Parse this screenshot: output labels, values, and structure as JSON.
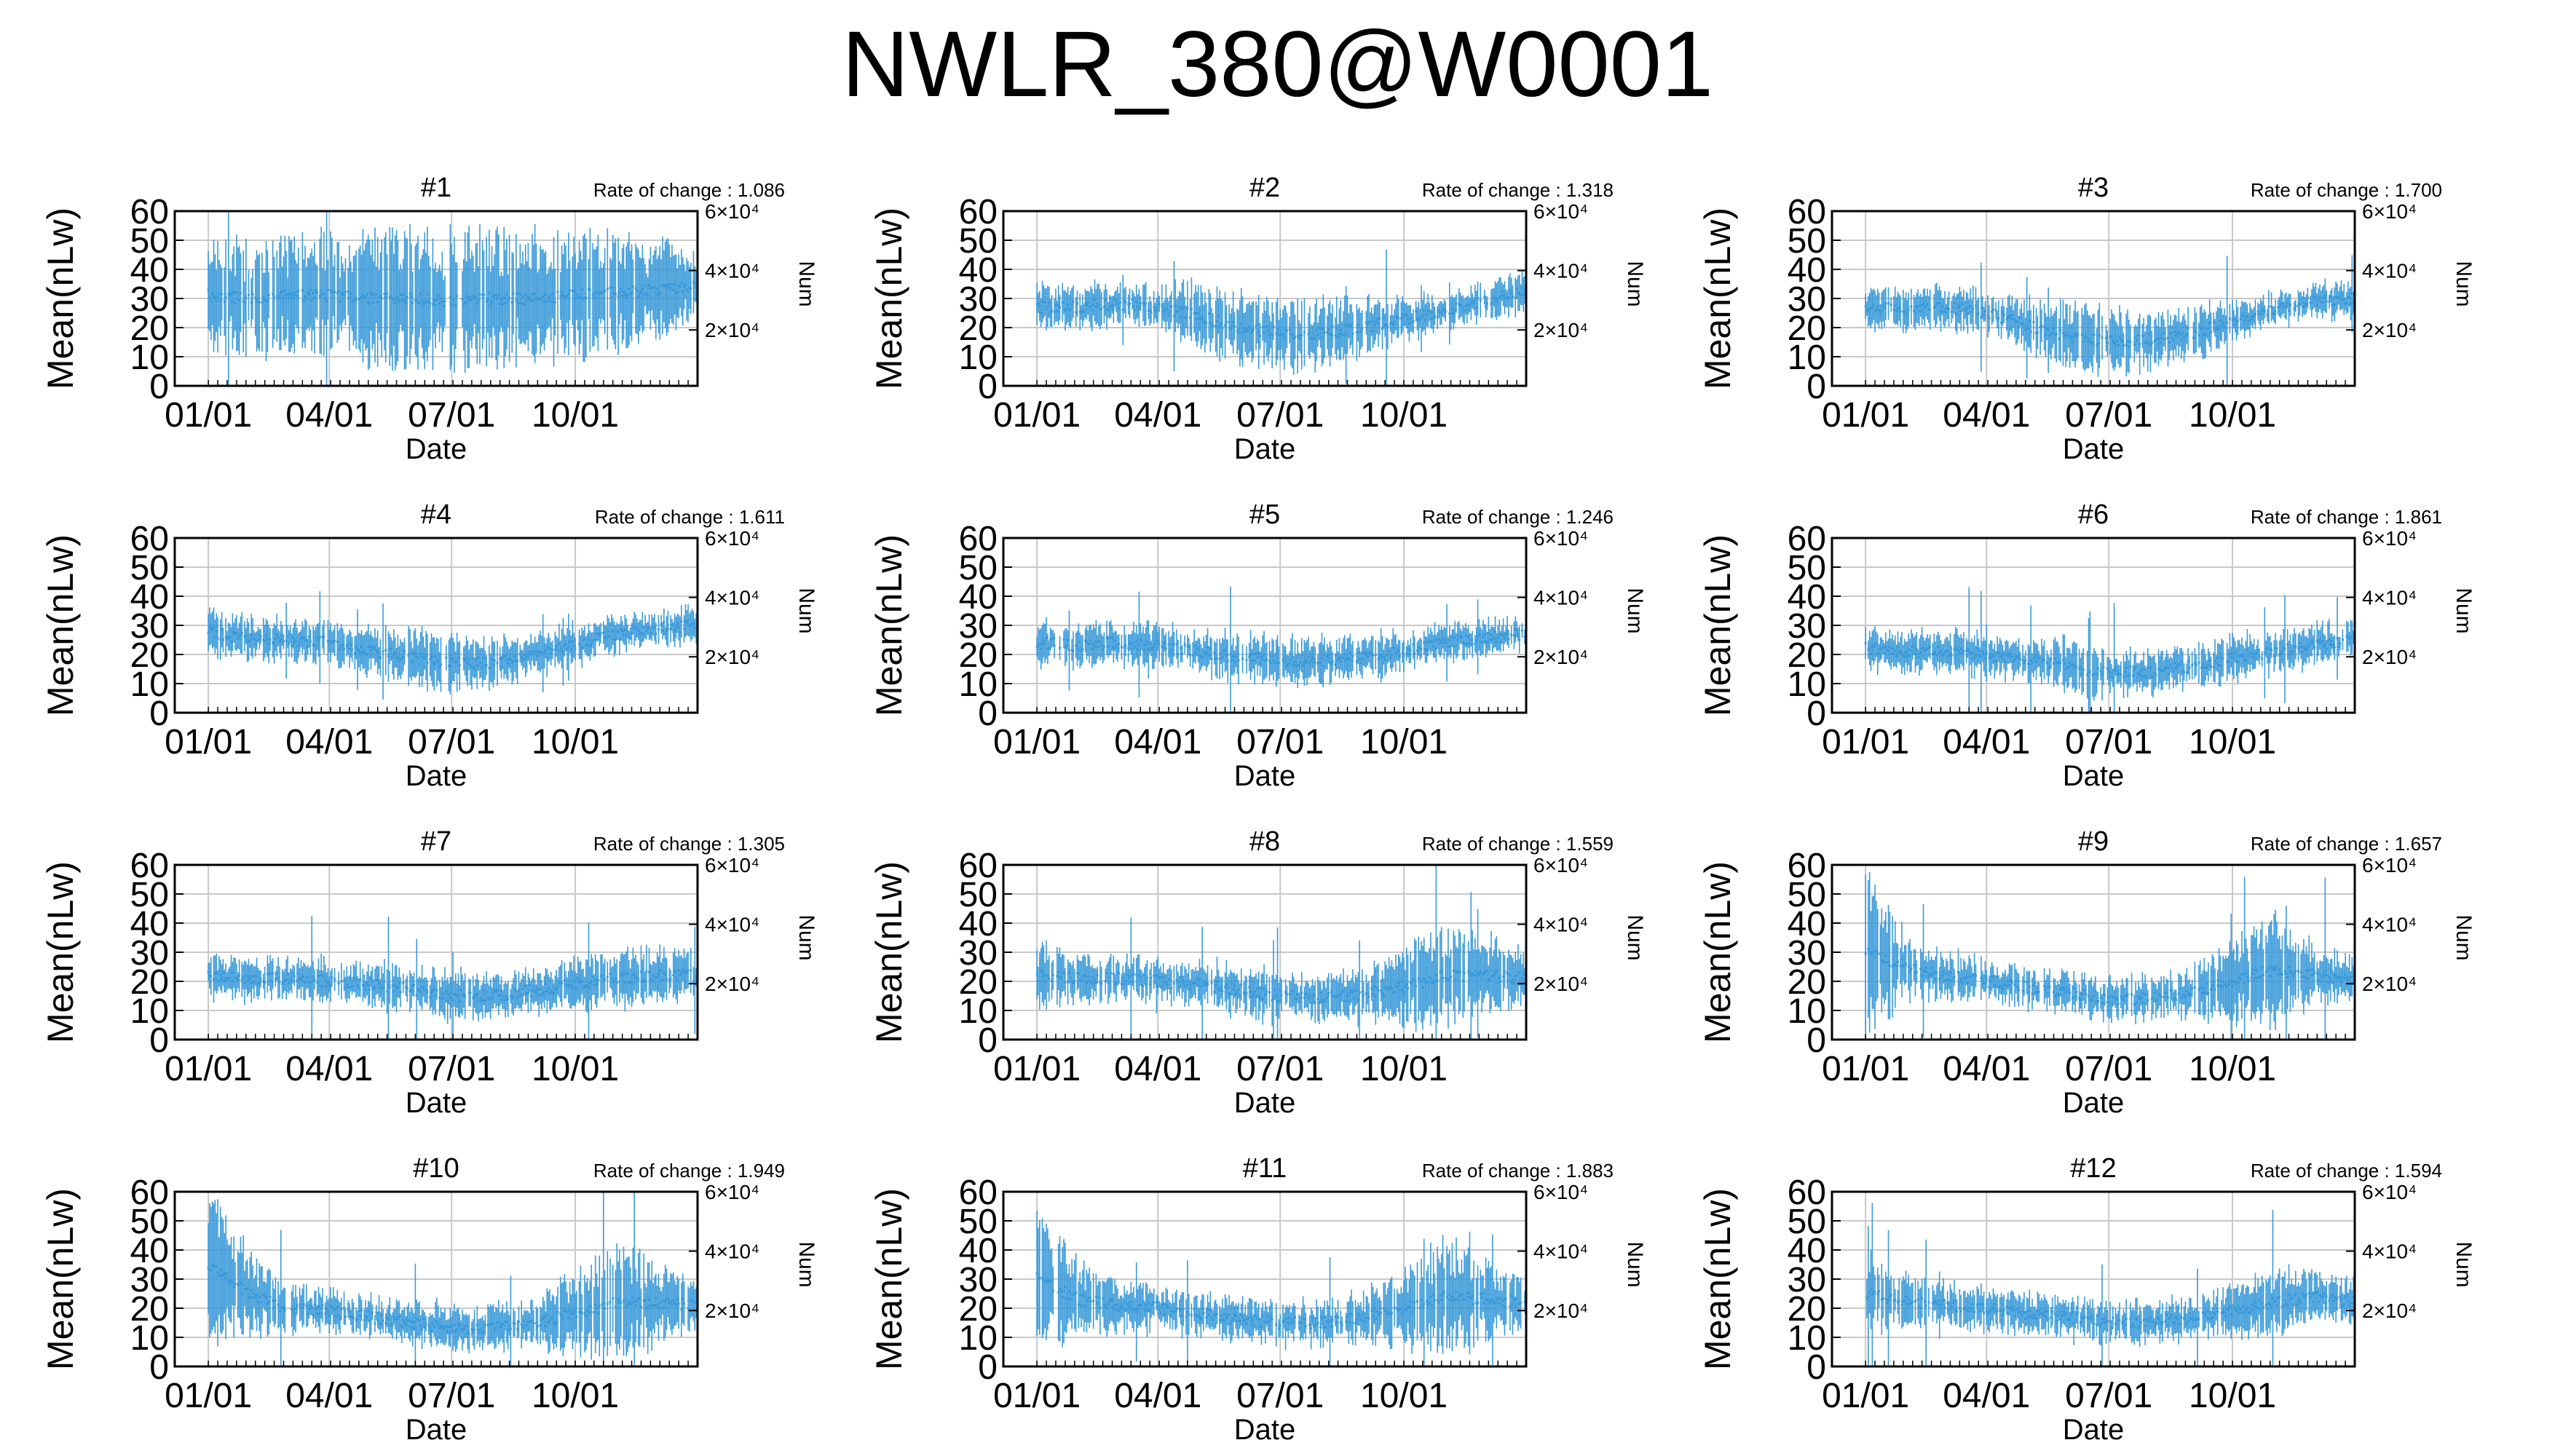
{
  "page": {
    "title": "NWLR_380@W0001"
  },
  "styles": {
    "series_color": "#3a9ad9",
    "grid_color": "#c8c8c8",
    "axis_color": "#000000"
  },
  "chart_data": [
    {
      "type": "line",
      "title": "#1",
      "rate_label": "Rate of change : 1.086",
      "xlabel": "Date",
      "ylabel": "Mean(nLw)",
      "y2label": "Num",
      "x_ticks": [
        "01/01",
        "04/01",
        "07/01",
        "10/01"
      ],
      "y_ticks": [
        0,
        10,
        20,
        30,
        40,
        50,
        60
      ],
      "y2_ticks": [
        "2×10⁴",
        "4×10⁴",
        "6×10⁴"
      ],
      "ylim": [
        0,
        60
      ],
      "x": [
        "01/01",
        "02/01",
        "03/01",
        "04/01",
        "05/01",
        "06/01",
        "07/01",
        "08/01",
        "09/01",
        "10/01",
        "11/01",
        "12/01",
        "12/31"
      ],
      "series": [
        {
          "values": [
            31,
            30,
            31,
            31,
            30,
            30,
            29,
            30,
            30,
            31,
            32,
            33,
            34
          ],
          "err": [
            13,
            14,
            14,
            15,
            16,
            17,
            17,
            17,
            16,
            15,
            14,
            12,
            8
          ]
        }
      ]
    },
    {
      "type": "line",
      "title": "#2",
      "rate_label": "Rate of change : 1.318",
      "xlabel": "Date",
      "ylabel": "Mean(nLw)",
      "y2label": "Num",
      "x_ticks": [
        "01/01",
        "04/01",
        "07/01",
        "10/01"
      ],
      "y_ticks": [
        0,
        10,
        20,
        30,
        40,
        50,
        60
      ],
      "y2_ticks": [
        "2×10⁴",
        "4×10⁴",
        "6×10⁴"
      ],
      "ylim": [
        0,
        60
      ],
      "x": [
        "01/01",
        "02/01",
        "03/01",
        "04/01",
        "05/01",
        "06/01",
        "07/01",
        "08/01",
        "09/01",
        "10/01",
        "11/01",
        "12/01",
        "12/31"
      ],
      "series": [
        {
          "values": [
            27,
            27,
            28,
            27,
            24,
            20,
            18,
            18,
            20,
            23,
            26,
            29,
            33
          ],
          "err": [
            5,
            5,
            5,
            5,
            8,
            9,
            9,
            8,
            7,
            5,
            4,
            4,
            6
          ]
        }
      ]
    },
    {
      "type": "line",
      "title": "#3",
      "rate_label": "Rate of change : 1.700",
      "xlabel": "Date",
      "ylabel": "Mean(nLw)",
      "y2label": "Num",
      "x_ticks": [
        "01/01",
        "04/01",
        "07/01",
        "10/01"
      ],
      "y_ticks": [
        0,
        10,
        20,
        30,
        40,
        50,
        60
      ],
      "y2_ticks": [
        "2×10⁴",
        "4×10⁴",
        "6×10⁴"
      ],
      "ylim": [
        0,
        60
      ],
      "x": [
        "01/01",
        "02/01",
        "03/01",
        "04/01",
        "05/01",
        "06/01",
        "07/01",
        "08/01",
        "09/01",
        "10/01",
        "11/01",
        "12/01",
        "12/31"
      ],
      "series": [
        {
          "values": [
            27,
            26,
            27,
            25,
            21,
            17,
            15,
            16,
            18,
            22,
            26,
            29,
            30
          ],
          "err": [
            5,
            5,
            5,
            5,
            6,
            8,
            8,
            7,
            6,
            5,
            4,
            4,
            4
          ]
        }
      ]
    },
    {
      "type": "line",
      "title": "#4",
      "rate_label": "Rate of change : 1.611",
      "xlabel": "Date",
      "ylabel": "Mean(nLw)",
      "y2label": "Num",
      "x_ticks": [
        "01/01",
        "04/01",
        "07/01",
        "10/01"
      ],
      "y_ticks": [
        0,
        10,
        20,
        30,
        40,
        50,
        60
      ],
      "y2_ticks": [
        "2×10⁴",
        "4×10⁴",
        "6×10⁴"
      ],
      "ylim": [
        0,
        60
      ],
      "x": [
        "01/01",
        "02/01",
        "03/01",
        "04/01",
        "05/01",
        "06/01",
        "07/01",
        "08/01",
        "09/01",
        "10/01",
        "11/01",
        "12/01",
        "12/31"
      ],
      "series": [
        {
          "values": [
            28,
            25,
            25,
            24,
            21,
            19,
            17,
            17,
            20,
            23,
            27,
            29,
            30
          ],
          "err": [
            5,
            5,
            5,
            5,
            6,
            7,
            7,
            6,
            5,
            5,
            4,
            4,
            4
          ]
        }
      ]
    },
    {
      "type": "line",
      "title": "#5",
      "rate_label": "Rate of change : 1.246",
      "xlabel": "Date",
      "ylabel": "Mean(nLw)",
      "y2label": "Num",
      "x_ticks": [
        "01/01",
        "04/01",
        "07/01",
        "10/01"
      ],
      "y_ticks": [
        0,
        10,
        20,
        30,
        40,
        50,
        60
      ],
      "y2_ticks": [
        "2×10⁴",
        "4×10⁴",
        "6×10⁴"
      ],
      "ylim": [
        0,
        60
      ],
      "x": [
        "01/01",
        "02/01",
        "03/01",
        "04/01",
        "05/01",
        "06/01",
        "07/01",
        "08/01",
        "09/01",
        "10/01",
        "11/01",
        "12/01",
        "12/31"
      ],
      "series": [
        {
          "values": [
            24,
            23,
            24,
            23,
            21,
            19,
            18,
            18,
            19,
            21,
            24,
            26,
            27
          ],
          "err": [
            5,
            5,
            5,
            5,
            5,
            6,
            6,
            5,
            5,
            5,
            4,
            4,
            4
          ]
        }
      ]
    },
    {
      "type": "line",
      "title": "#6",
      "rate_label": "Rate of change : 1.861",
      "xlabel": "Date",
      "ylabel": "Mean(nLw)",
      "y2label": "Num",
      "x_ticks": [
        "01/01",
        "04/01",
        "07/01",
        "10/01"
      ],
      "y_ticks": [
        0,
        10,
        20,
        30,
        40,
        50,
        60
      ],
      "y2_ticks": [
        "2×10⁴",
        "4×10⁴",
        "6×10⁴"
      ],
      "ylim": [
        0,
        60
      ],
      "x": [
        "01/01",
        "02/01",
        "03/01",
        "04/01",
        "05/01",
        "06/01",
        "07/01",
        "08/01",
        "09/01",
        "10/01",
        "11/01",
        "12/01",
        "12/31"
      ],
      "series": [
        {
          "values": [
            22,
            21,
            21,
            20,
            18,
            16,
            14,
            14,
            16,
            19,
            21,
            23,
            25
          ],
          "err": [
            5,
            5,
            5,
            5,
            5,
            6,
            6,
            5,
            5,
            5,
            5,
            5,
            4
          ]
        }
      ]
    },
    {
      "type": "line",
      "title": "#7",
      "rate_label": "Rate of change : 1.305",
      "xlabel": "Date",
      "ylabel": "Mean(nLw)",
      "y2label": "Num",
      "x_ticks": [
        "01/01",
        "04/01",
        "07/01",
        "10/01"
      ],
      "y_ticks": [
        0,
        10,
        20,
        30,
        40,
        50,
        60
      ],
      "y2_ticks": [
        "2×10⁴",
        "4×10⁴",
        "6×10⁴"
      ],
      "ylim": [
        0,
        60
      ],
      "x": [
        "01/01",
        "02/01",
        "03/01",
        "04/01",
        "05/01",
        "06/01",
        "07/01",
        "08/01",
        "09/01",
        "10/01",
        "11/01",
        "12/01",
        "12/31"
      ],
      "series": [
        {
          "values": [
            22,
            21,
            21,
            20,
            19,
            17,
            15,
            15,
            17,
            19,
            21,
            22,
            22
          ],
          "err": [
            6,
            5,
            5,
            5,
            5,
            6,
            6,
            5,
            5,
            6,
            7,
            6,
            5
          ]
        }
      ]
    },
    {
      "type": "line",
      "title": "#8",
      "rate_label": "Rate of change : 1.559",
      "xlabel": "Date",
      "ylabel": "Mean(nLw)",
      "y2label": "Num",
      "x_ticks": [
        "01/01",
        "04/01",
        "07/01",
        "10/01"
      ],
      "y_ticks": [
        0,
        10,
        20,
        30,
        40,
        50,
        60
      ],
      "y2_ticks": [
        "2×10⁴",
        "4×10⁴",
        "6×10⁴"
      ],
      "ylim": [
        0,
        60
      ],
      "x": [
        "01/01",
        "02/01",
        "03/01",
        "04/01",
        "05/01",
        "06/01",
        "07/01",
        "08/01",
        "09/01",
        "10/01",
        "11/01",
        "12/01",
        "12/31"
      ],
      "series": [
        {
          "values": [
            22,
            21,
            21,
            20,
            19,
            17,
            15,
            14,
            16,
            18,
            22,
            22,
            21
          ],
          "err": [
            9,
            6,
            5,
            5,
            5,
            6,
            6,
            5,
            6,
            9,
            14,
            10,
            6
          ]
        }
      ]
    },
    {
      "type": "line",
      "title": "#9",
      "rate_label": "Rate of change : 1.657",
      "xlabel": "Date",
      "ylabel": "Mean(nLw)",
      "y2label": "Num",
      "x_ticks": [
        "01/01",
        "04/01",
        "07/01",
        "10/01"
      ],
      "y_ticks": [
        0,
        10,
        20,
        30,
        40,
        50,
        60
      ],
      "y2_ticks": [
        "2×10⁴",
        "4×10⁴",
        "6×10⁴"
      ],
      "ylim": [
        0,
        60
      ],
      "x": [
        "01/01",
        "02/01",
        "03/01",
        "04/01",
        "05/01",
        "06/01",
        "07/01",
        "08/01",
        "09/01",
        "10/01",
        "11/01",
        "12/01",
        "12/31"
      ],
      "series": [
        {
          "values": [
            30,
            25,
            22,
            20,
            18,
            16,
            14,
            14,
            16,
            20,
            24,
            22,
            21
          ],
          "err": [
            20,
            8,
            6,
            5,
            5,
            5,
            5,
            5,
            6,
            10,
            14,
            8,
            5
          ]
        }
      ]
    },
    {
      "type": "line",
      "title": "#10",
      "rate_label": "Rate of change : 1.949",
      "xlabel": "Date",
      "ylabel": "Mean(nLw)",
      "y2label": "Num",
      "x_ticks": [
        "01/01",
        "04/01",
        "07/01",
        "10/01"
      ],
      "y_ticks": [
        0,
        10,
        20,
        30,
        40,
        50,
        60
      ],
      "y2_ticks": [
        "2×10⁴",
        "4×10⁴",
        "6×10⁴"
      ],
      "ylim": [
        0,
        60
      ],
      "x": [
        "01/01",
        "02/01",
        "03/01",
        "04/01",
        "05/01",
        "06/01",
        "07/01",
        "08/01",
        "09/01",
        "10/01",
        "11/01",
        "12/01",
        "12/31"
      ],
      "series": [
        {
          "values": [
            35,
            25,
            20,
            19,
            17,
            15,
            13,
            13,
            15,
            18,
            22,
            22,
            21
          ],
          "err": [
            20,
            10,
            6,
            5,
            5,
            5,
            5,
            5,
            6,
            10,
            14,
            10,
            5
          ]
        }
      ]
    },
    {
      "type": "line",
      "title": "#11",
      "rate_label": "Rate of change : 1.883",
      "xlabel": "Date",
      "ylabel": "Mean(nLw)",
      "y2label": "Num",
      "x_ticks": [
        "01/01",
        "04/01",
        "07/01",
        "10/01"
      ],
      "y_ticks": [
        0,
        10,
        20,
        30,
        40,
        50,
        60
      ],
      "y2_ticks": [
        "2×10⁴",
        "4×10⁴",
        "6×10⁴"
      ],
      "ylim": [
        0,
        60
      ],
      "x": [
        "01/01",
        "02/01",
        "03/01",
        "04/01",
        "05/01",
        "06/01",
        "07/01",
        "08/01",
        "09/01",
        "10/01",
        "11/01",
        "12/01",
        "12/31"
      ],
      "series": [
        {
          "values": [
            30,
            23,
            21,
            20,
            18,
            16,
            15,
            15,
            17,
            20,
            24,
            23,
            22
          ],
          "err": [
            18,
            9,
            6,
            5,
            5,
            5,
            5,
            5,
            6,
            10,
            14,
            10,
            6
          ]
        }
      ]
    },
    {
      "type": "line",
      "title": "#12",
      "rate_label": "Rate of change : 1.594",
      "xlabel": "Date",
      "ylabel": "Mean(nLw)",
      "y2label": "Num",
      "x_ticks": [
        "01/01",
        "04/01",
        "07/01",
        "10/01"
      ],
      "y_ticks": [
        0,
        10,
        20,
        30,
        40,
        50,
        60
      ],
      "y2_ticks": [
        "2×10⁴",
        "4×10⁴",
        "6×10⁴"
      ],
      "ylim": [
        0,
        60
      ],
      "x": [
        "01/01",
        "02/01",
        "03/01",
        "04/01",
        "05/01",
        "06/01",
        "07/01",
        "08/01",
        "09/01",
        "10/01",
        "11/01",
        "12/01",
        "12/31"
      ],
      "series": [
        {
          "values": [
            25,
            22,
            21,
            20,
            18,
            17,
            15,
            15,
            17,
            19,
            22,
            24,
            22
          ],
          "err": [
            10,
            6,
            5,
            5,
            5,
            5,
            5,
            5,
            5,
            6,
            8,
            6,
            5
          ]
        }
      ]
    }
  ]
}
